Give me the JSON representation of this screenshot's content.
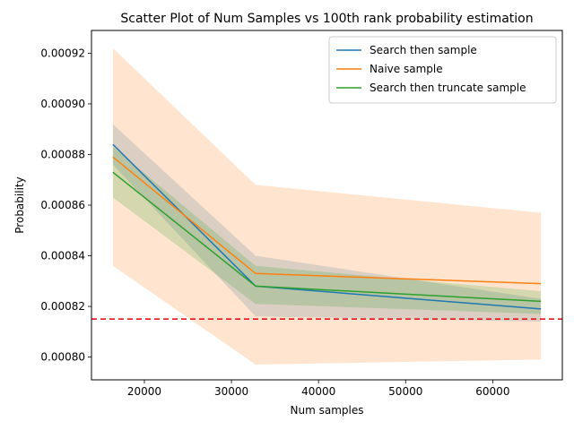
{
  "chart_data": {
    "type": "line",
    "title": "Scatter Plot of Num Samples vs 100th rank probability estimation",
    "xlabel": "Num samples",
    "ylabel": "Probability",
    "x": [
      16384,
      32768,
      65536
    ],
    "xlim": [
      13926,
      67994
    ],
    "ylim": [
      0.000791,
      0.000929
    ],
    "xticks": [
      20000,
      30000,
      40000,
      50000,
      60000
    ],
    "xtick_labels": [
      "20000",
      "30000",
      "40000",
      "50000",
      "60000"
    ],
    "yticks": [
      0.0008,
      0.00082,
      0.00084,
      0.00086,
      0.00088,
      0.0009,
      0.00092
    ],
    "ytick_labels": [
      "0.00080",
      "0.00082",
      "0.00084",
      "0.00086",
      "0.00088",
      "0.00090",
      "0.00092"
    ],
    "grid": false,
    "legend_position": "top-right",
    "series": [
      {
        "name": "Search then sample",
        "color": "#1f77b4",
        "values": [
          0.000884,
          0.000828,
          0.000819
        ],
        "band_lower": [
          0.000876,
          0.000816,
          0.000814
        ],
        "band_upper": [
          0.000892,
          0.00084,
          0.000823
        ]
      },
      {
        "name": "Naive sample",
        "color": "#ff7f0e",
        "values": [
          0.000879,
          0.000833,
          0.000829
        ],
        "band_lower": [
          0.000836,
          0.000797,
          0.000799
        ],
        "band_upper": [
          0.000922,
          0.000868,
          0.000857
        ]
      },
      {
        "name": "Search then truncate sample",
        "color": "#2ca02c",
        "values": [
          0.000873,
          0.000828,
          0.000822
        ],
        "band_lower": [
          0.000863,
          0.000821,
          0.000817
        ],
        "band_upper": [
          0.000883,
          0.000836,
          0.000826
        ]
      }
    ],
    "reference_line": {
      "y": 0.000815,
      "color": "#e8000b",
      "style": "dashed"
    }
  }
}
